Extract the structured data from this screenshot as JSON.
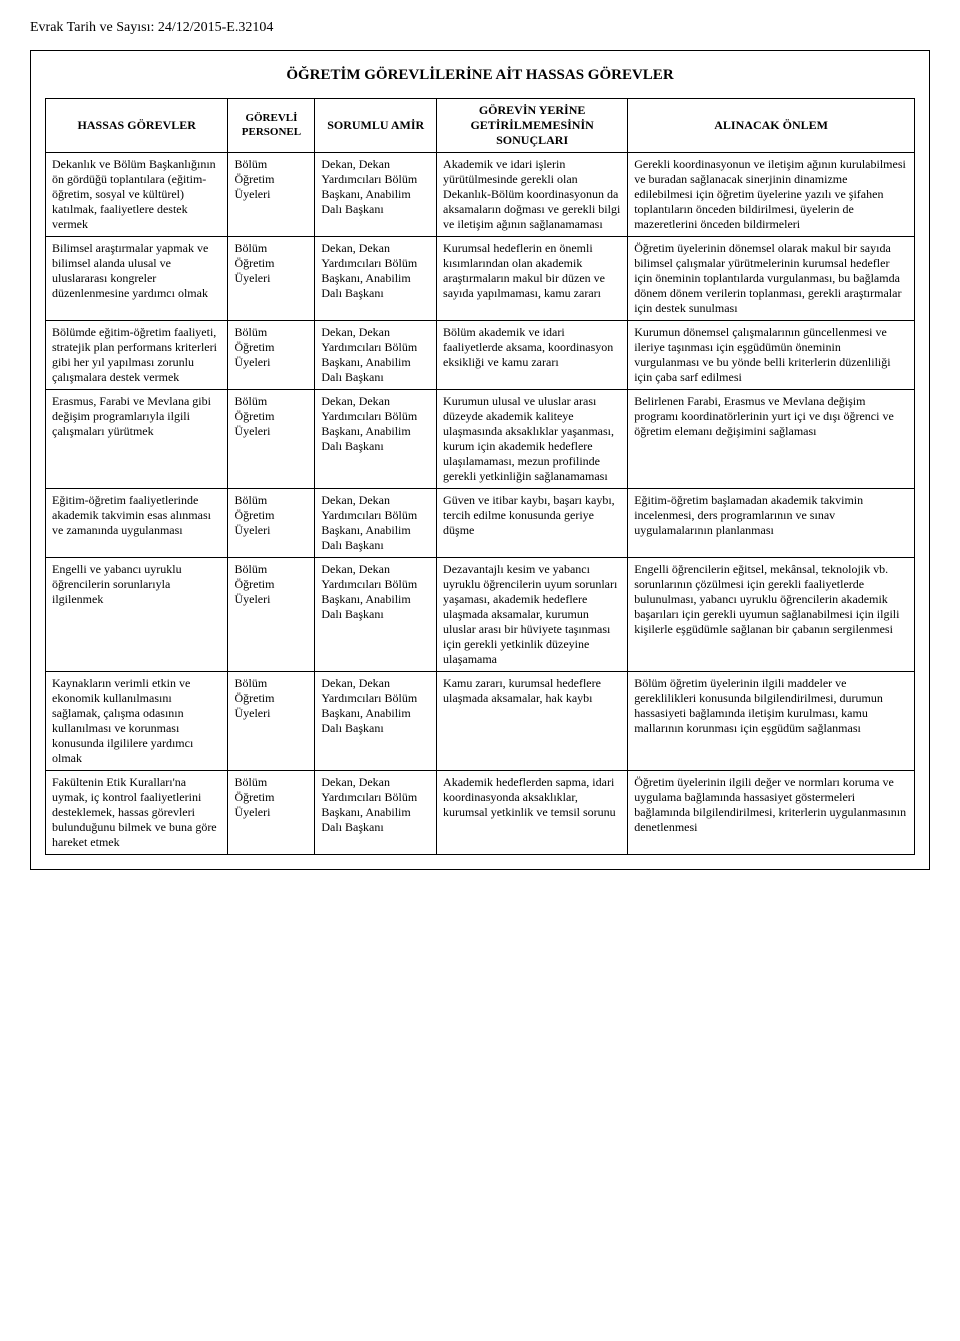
{
  "meta": {
    "doc_id": "Evrak Tarih ve Sayısı: 24/12/2015-E.32104",
    "title": "ÖĞRETİM GÖREVLİLERİNE AİT HASSAS GÖREVLER"
  },
  "columns": {
    "c1": "HASSAS GÖREVLER",
    "c2": "GÖREVLİ PERSONEL",
    "c3": "SORUMLU AMİR",
    "c4": "GÖREVİN YERİNE GETİRİLMEMESİNİN SONUÇLARI",
    "c5": "ALINACAK ÖNLEM"
  },
  "common": {
    "personel": "Bölüm Öğretim Üyeleri",
    "amir": "Dekan, Dekan Yardımcıları Bölüm Başkanı, Anabilim Dalı Başkanı"
  },
  "rows": [
    {
      "gorev": "Dekanlık ve Bölüm Başkanlığının ön gördüğü toplantılara (eğitim-öğretim, sosyal ve kültürel) katılmak, faaliyetlere destek vermek",
      "sonuc": "Akademik ve idari işlerin yürütülmesinde gerekli olan Dekanlık-Bölüm koordinasyonun da aksamaların doğması ve gerekli bilgi ve iletişim ağının sağlanamaması",
      "onlem": "Gerekli koordinasyonun ve iletişim ağının kurulabilmesi ve buradan sağlanacak sinerjinin dinamizme edilebilmesi için öğretim üyelerine yazılı ve şifahen toplantıların önceden bildirilmesi, üyelerin de mazeretlerini önceden bildirmeleri"
    },
    {
      "gorev": "Bilimsel araştırmalar yapmak ve bilimsel alanda ulusal ve uluslararası kongreler düzenlenmesine yardımcı olmak",
      "sonuc": "Kurumsal hedeflerin en önemli kısımlarından olan akademik araştırmaların makul bir düzen ve sayıda yapılmaması, kamu zararı",
      "onlem": "Öğretim üyelerinin dönemsel olarak makul bir sayıda bilimsel çalışmalar yürütmelerinin kurumsal hedefler için öneminin toplantılarda vurgulanması, bu bağlamda dönem dönem verilerin toplanması, gerekli araştırmalar için destek sunulması"
    },
    {
      "gorev": "Bölümde eğitim-öğretim faaliyeti, stratejik plan performans kriterleri gibi her yıl yapılması zorunlu çalışmalara destek vermek",
      "sonuc": "Bölüm akademik ve idari faaliyetlerde aksama, koordinasyon eksikliği ve kamu zararı",
      "onlem": "Kurumun dönemsel çalışmalarının güncellenmesi ve ileriye taşınması için eşgüdümün öneminin vurgulanması ve bu yönde belli kriterlerin düzenliliği için çaba sarf edilmesi"
    },
    {
      "gorev": "Erasmus, Farabi ve Mevlana gibi değişim programlarıyla ilgili çalışmaları yürütmek",
      "sonuc": "Kurumun ulusal ve uluslar arası düzeyde akademik kaliteye ulaşmasında aksaklıklar yaşanması, kurum için akademik hedeflere ulaşılamaması, mezun profilinde gerekli yetkinliğin sağlanamaması",
      "onlem": "Belirlenen Farabi, Erasmus ve Mevlana değişim programı koordinatörlerinin yurt içi ve dışı öğrenci ve öğretim elemanı değişimini sağlaması"
    },
    {
      "gorev": "Eğitim-öğretim faaliyetlerinde akademik takvimin esas alınması ve zamanında uygulanması",
      "sonuc": "Güven ve itibar kaybı, başarı kaybı, tercih edilme konusunda geriye düşme",
      "onlem": "Eğitim-öğretim başlamadan akademik takvimin incelenmesi, ders programlarının ve sınav uygulamalarının planlanması"
    },
    {
      "gorev": "Engelli ve yabancı uyruklu öğrencilerin sorunlarıyla ilgilenmek",
      "sonuc": "Dezavantajlı kesim ve yabancı uyruklu öğrencilerin uyum sorunları yaşaması, akademik hedeflere ulaşmada aksamalar, kurumun uluslar arası bir hüviyete taşınması için gerekli yetkinlik düzeyine ulaşamama",
      "onlem": "Engelli öğrencilerin eğitsel, mekânsal, teknolojik vb. sorunlarının çözülmesi için gerekli faaliyetlerde bulunulması, yabancı uyruklu öğrencilerin akademik başarıları için gerekli uyumun sağlanabilmesi için ilgili kişilerle eşgüdümle sağlanan bir çabanın sergilenmesi"
    },
    {
      "gorev": "Kaynakların verimli etkin ve ekonomik kullanılmasını sağlamak, çalışma odasının kullanılması ve korunması konusunda ilgililere yardımcı olmak",
      "sonuc": "Kamu zararı, kurumsal hedeflere ulaşmada aksamalar, hak kaybı",
      "onlem": "Bölüm öğretim üyelerinin ilgili maddeler ve gereklilikleri konusunda bilgilendirilmesi, durumun hassasiyeti bağlamında iletişim kurulması, kamu mallarının korunması için eşgüdüm sağlanması"
    },
    {
      "gorev": "Fakültenin Etik Kuralları'na uymak, iç kontrol faaliyetlerini desteklemek, hassas görevleri bulunduğunu bilmek ve buna göre hareket etmek",
      "sonuc": "Akademik hedeflerden sapma, idari koordinasyonda aksaklıklar, kurumsal yetkinlik ve temsil sorunu",
      "onlem": "Öğretim üyelerinin ilgili değer ve normları koruma ve uygulama bağlamında hassasiyet göstermeleri bağlamında bilgilendirilmesi, kriterlerin uygulanmasının denetlenmesi"
    }
  ]
}
